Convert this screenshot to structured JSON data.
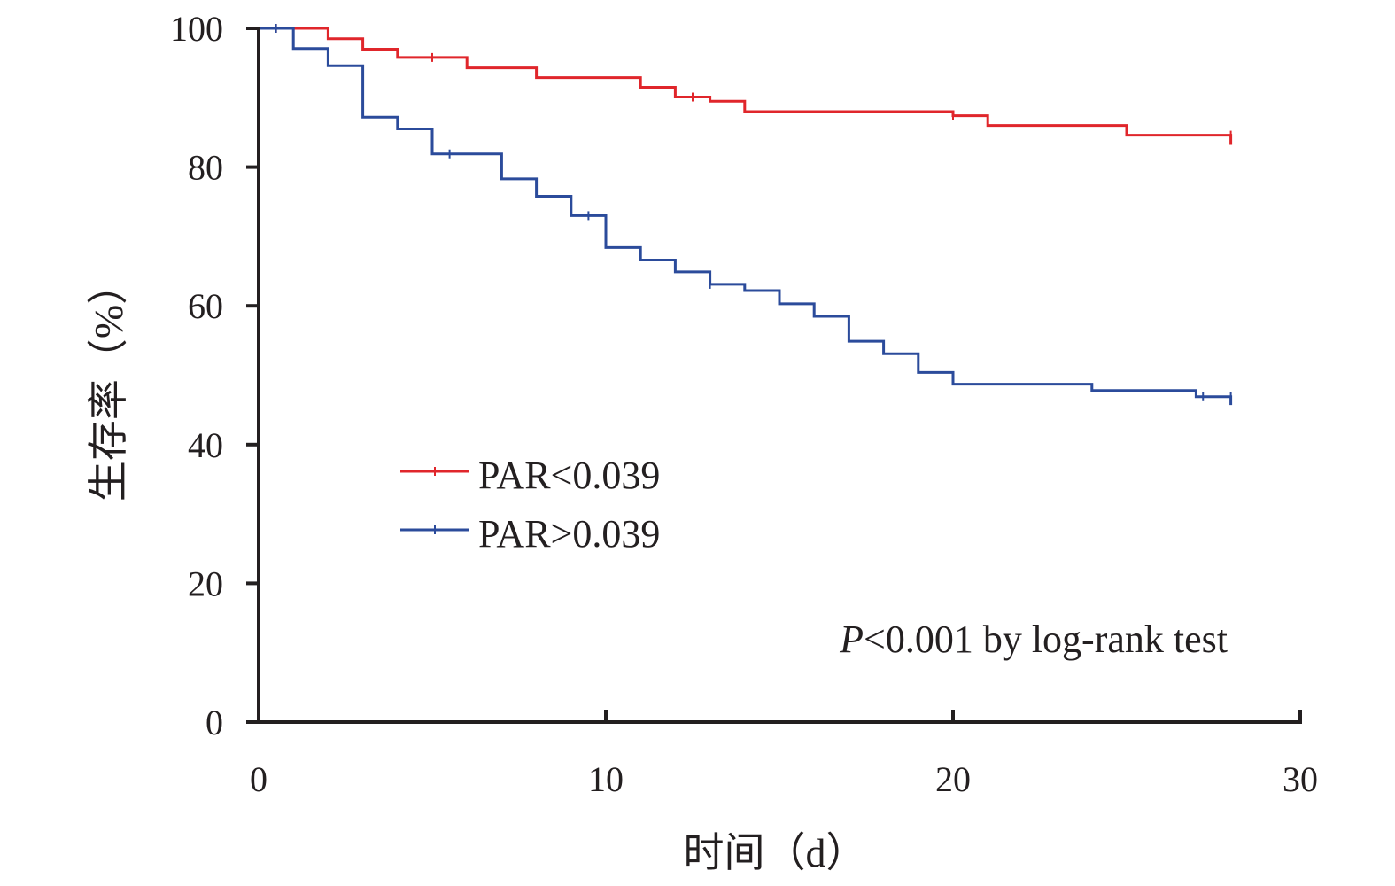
{
  "chart_data": {
    "type": "line",
    "title": "",
    "xlabel": "时间（d）",
    "ylabel": "生存率（%）",
    "xlim": [
      0,
      30
    ],
    "ylim": [
      0,
      100
    ],
    "x_ticks": [
      "0",
      "10",
      "20",
      "30"
    ],
    "y_ticks": [
      "0",
      "20",
      "40",
      "60",
      "80",
      "100"
    ],
    "grid": false,
    "legend_position": "center-left",
    "annotation": {
      "p_label": "P",
      "rest": "<0.001 by log-rank test"
    },
    "series": [
      {
        "name": "PAR<0.039",
        "color": "#e0262b",
        "step": "post",
        "x": [
          0,
          2,
          3,
          4,
          6,
          8,
          11,
          12,
          13,
          14,
          20,
          21,
          25,
          28
        ],
        "y": [
          100,
          98.5,
          97,
          95.8,
          94.3,
          92.9,
          91.5,
          90.1,
          89.5,
          88,
          87.4,
          86,
          84.6,
          84.6
        ],
        "censor_x": [
          0.5,
          5,
          12.5,
          20,
          28
        ],
        "end_drop_to": 83.2
      },
      {
        "name": "PAR>0.039",
        "color": "#2b4b9b",
        "step": "post",
        "x": [
          0,
          1,
          2,
          3,
          4,
          5,
          7,
          8,
          9,
          10,
          11,
          12,
          13,
          14,
          15,
          16,
          17,
          18,
          19,
          20,
          24,
          27,
          28
        ],
        "y": [
          100,
          97.1,
          94.6,
          87.2,
          85.5,
          81.9,
          78.3,
          75.8,
          73,
          68.4,
          66.6,
          64.9,
          63.1,
          62.2,
          60.3,
          58.5,
          54.9,
          53.1,
          50.4,
          48.7,
          47.8,
          46.9,
          46.9
        ],
        "censor_x": [
          0.5,
          5.5,
          9.5,
          13,
          27.2,
          28
        ],
        "end_drop_to": 45.7
      }
    ]
  }
}
